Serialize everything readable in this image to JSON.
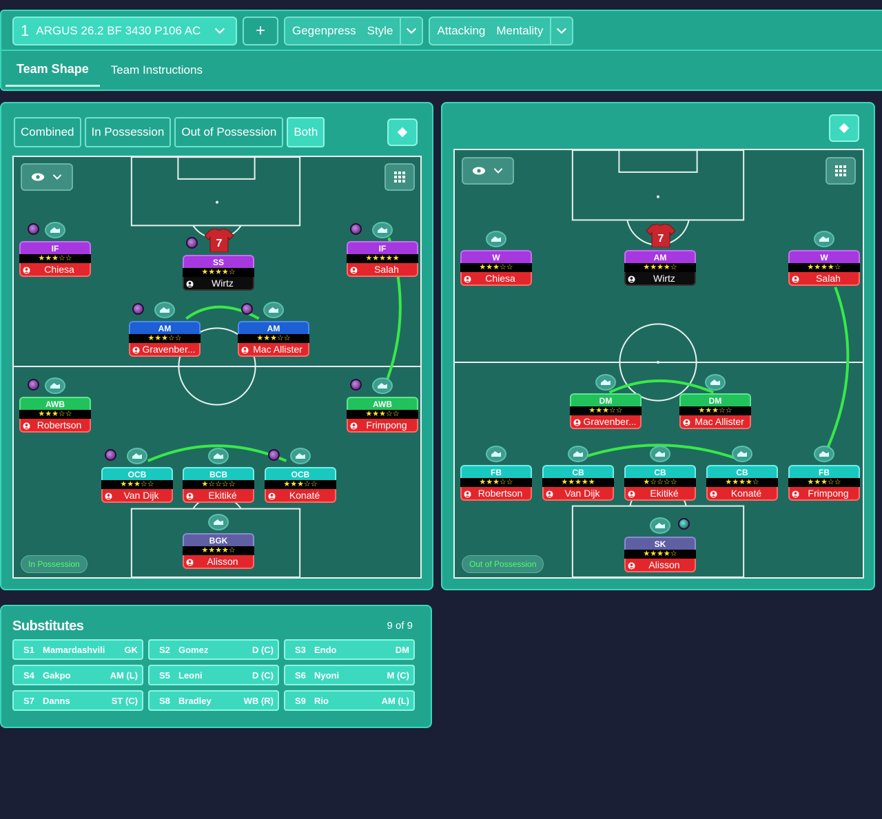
{
  "topbar": {
    "tactic_number": "1",
    "tactic_name": "ARGUS 26.2 BF 3430 P106 AC",
    "add_label": "+",
    "style_value": "Gegenpress",
    "style_label": "Style",
    "mentality_value": "Attacking",
    "mentality_label": "Mentality",
    "tabs": [
      "Team Shape",
      "Team Instructions"
    ]
  },
  "left_panel": {
    "segments": [
      "Combined",
      "In Possession",
      "Out of Possession",
      "Both"
    ],
    "active_segment": "Both",
    "phase_tag": "In Possession",
    "players": [
      {
        "role": "IF",
        "stars": "★★★☆☆",
        "name": "Chiesa"
      },
      {
        "role": "SS",
        "stars": "★★★★☆",
        "name": "Wirtz",
        "shirt_number": "7"
      },
      {
        "role": "IF",
        "stars": "★★★★★",
        "name": "Salah"
      },
      {
        "role": "AM",
        "stars": "★★★☆☆",
        "name": "Gravenber..."
      },
      {
        "role": "AM",
        "stars": "★★★☆☆",
        "name": "Mac Allister"
      },
      {
        "role": "AWB",
        "stars": "★★★☆☆",
        "name": "Robertson"
      },
      {
        "role": "AWB",
        "stars": "★★★☆☆",
        "name": "Frimpong"
      },
      {
        "role": "OCB",
        "stars": "★★★☆☆",
        "name": "Van Dijk"
      },
      {
        "role": "BCB",
        "stars": "★☆☆☆☆",
        "name": "Ekitiké"
      },
      {
        "role": "OCB",
        "stars": "★★★☆☆",
        "name": "Konaté"
      },
      {
        "role": "BGK",
        "stars": "★★★★☆",
        "name": "Alisson"
      }
    ]
  },
  "right_panel": {
    "phase_tag": "Out of Possession",
    "players": [
      {
        "role": "W",
        "stars": "★★★☆☆",
        "name": "Chiesa"
      },
      {
        "role": "AM",
        "stars": "★★★★☆",
        "name": "Wirtz",
        "shirt_number": "7"
      },
      {
        "role": "W",
        "stars": "★★★★☆",
        "name": "Salah"
      },
      {
        "role": "DM",
        "stars": "★★★☆☆",
        "name": "Gravenber..."
      },
      {
        "role": "DM",
        "stars": "★★★☆☆",
        "name": "Mac Allister"
      },
      {
        "role": "FB",
        "stars": "★★★☆☆",
        "name": "Robertson"
      },
      {
        "role": "CB",
        "stars": "★★★★★",
        "name": "Van Dijk"
      },
      {
        "role": "CB",
        "stars": "★☆☆☆☆",
        "name": "Ekitiké"
      },
      {
        "role": "CB",
        "stars": "★★★★☆",
        "name": "Konaté"
      },
      {
        "role": "FB",
        "stars": "★★★☆☆",
        "name": "Frimpong"
      },
      {
        "role": "SK",
        "stars": "★★★★☆",
        "name": "Alisson"
      }
    ]
  },
  "substitutes": {
    "title": "Substitutes",
    "count": "9 of 9",
    "items": [
      {
        "slot": "S1",
        "name": "Mamardashvili",
        "pos": "GK"
      },
      {
        "slot": "S2",
        "name": "Gomez",
        "pos": "D (C)"
      },
      {
        "slot": "S3",
        "name": "Endo",
        "pos": "DM"
      },
      {
        "slot": "S4",
        "name": "Gakpo",
        "pos": "AM (L)"
      },
      {
        "slot": "S5",
        "name": "Leoni",
        "pos": "D (C)"
      },
      {
        "slot": "S6",
        "name": "Nyoni",
        "pos": "M (C)"
      },
      {
        "slot": "S7",
        "name": "Danns",
        "pos": "ST (C)"
      },
      {
        "slot": "S8",
        "name": "Bradley",
        "pos": "WB (R)"
      },
      {
        "slot": "S9",
        "name": "Rio",
        "pos": "AM (L)"
      }
    ]
  },
  "colors": {
    "background": "#1a1f36",
    "panel": "#22a58f",
    "accent": "#3cd9bf",
    "pitch": "#1f6a5e",
    "link_line": "#39e84a"
  }
}
